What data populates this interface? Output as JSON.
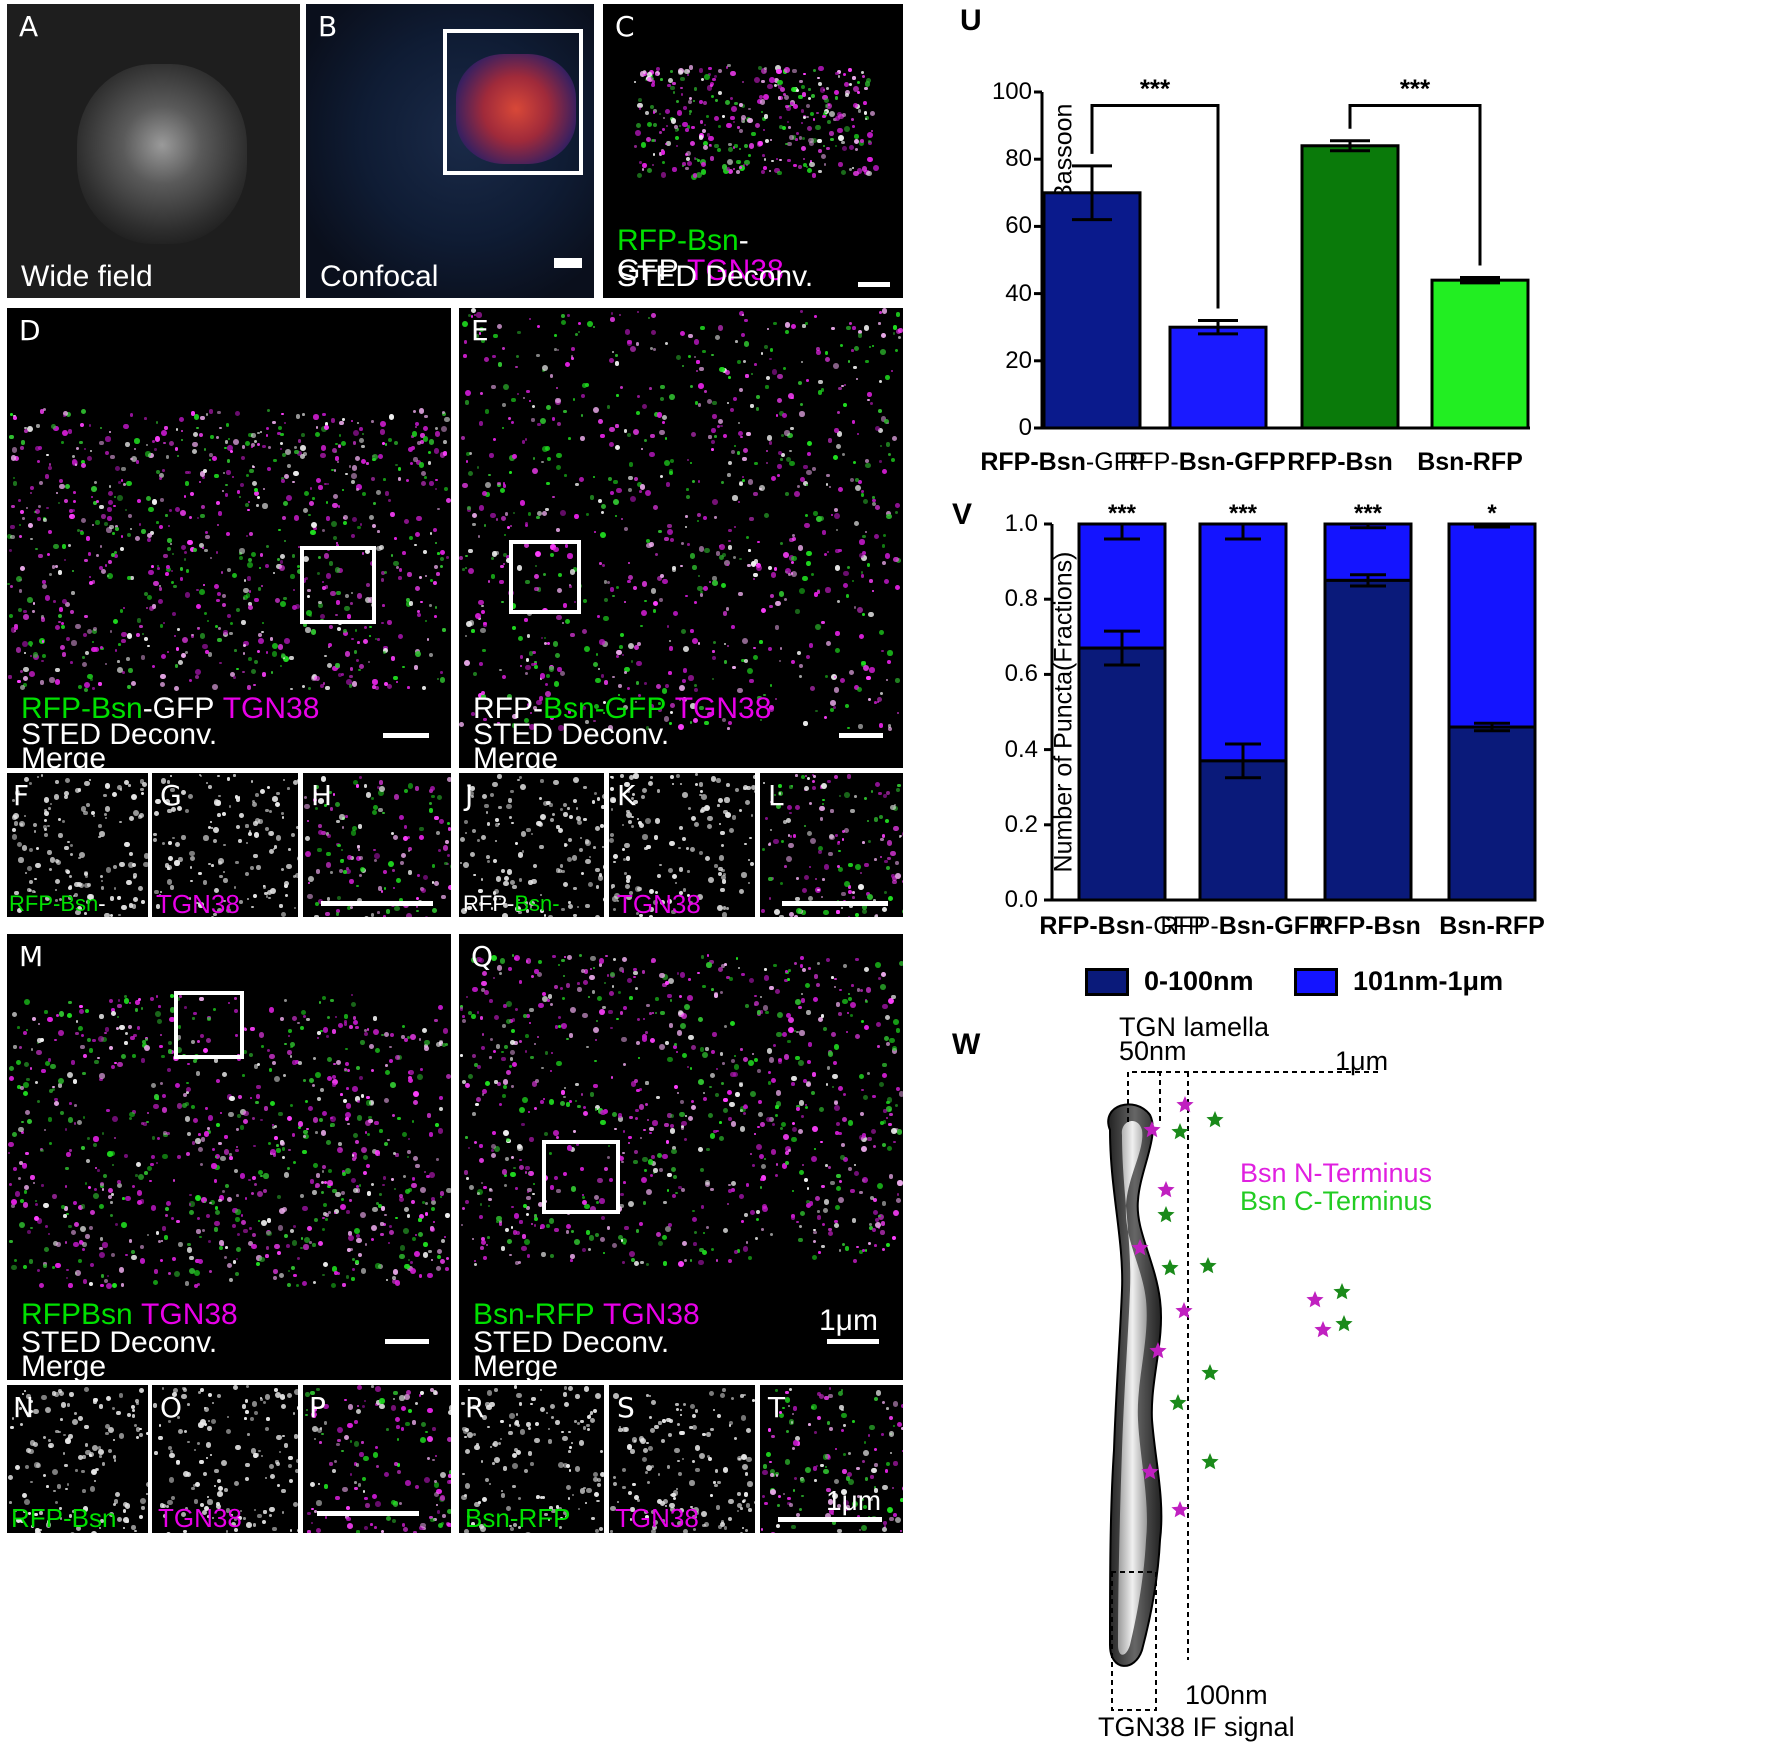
{
  "panels": {
    "A": {
      "label": "A",
      "caption": "Wide field"
    },
    "B": {
      "label": "B",
      "caption": "Confocal"
    },
    "C": {
      "label": "C",
      "cap_g1": "RFP-",
      "cap_g2": "Bsn",
      "cap_w1": "-GFP",
      "cap_m1": "TGN38",
      "cap_line2": "STED Deconv."
    },
    "D": {
      "label": "D",
      "cap_g1": "RFP-Bsn",
      "cap_w1": "-GFP",
      "cap_m1": "TGN38",
      "cap_line2": "STED Deconv.",
      "cap_line3": "Merge"
    },
    "E": {
      "label": "E",
      "cap_w1": "RFP-",
      "cap_g1": "Bsn-GFP",
      "cap_m1": "TGN38",
      "cap_line2": "STED Deconv.",
      "cap_line3": "Merge"
    },
    "F": {
      "label": "F",
      "cap_g1": "RFP-Bsn",
      "cap_w1": "-GFP"
    },
    "G": {
      "label": "G",
      "cap_m1": "TGN38"
    },
    "H": {
      "label": "H"
    },
    "J": {
      "label": "J",
      "cap_w1": "RFP-",
      "cap_g1": "Bsn-GFP"
    },
    "K": {
      "label": "K",
      "cap_m1": "TGN38"
    },
    "L": {
      "label": "L"
    },
    "M": {
      "label": "M",
      "cap_g1": "RFPBsn",
      "cap_m1": "TGN38",
      "cap_line2": "STED Deconv.",
      "cap_line3": "Merge"
    },
    "Q": {
      "label": "Q",
      "cap_g1": "Bsn-RFP",
      "cap_m1": "TGN38",
      "cap_line2": "STED Deconv.",
      "cap_line3": "Merge",
      "scale": "1μm"
    },
    "N": {
      "label": "N",
      "cap_g1": "RFP-Bsn"
    },
    "O": {
      "label": "O",
      "cap_m1": "TGN38"
    },
    "P": {
      "label": "P"
    },
    "R": {
      "label": "R",
      "cap_g1": "Bsn-RFP"
    },
    "S": {
      "label": "S",
      "cap_m1": "TGN38"
    },
    "T": {
      "label": "T",
      "scale": "1μm"
    }
  },
  "chart_data": [
    {
      "panel": "U",
      "type": "bar",
      "ylabel": "% Colocalisation of Bassoon",
      "ylim": [
        0,
        100
      ],
      "yticks": [
        "0",
        "20",
        "40",
        "60",
        "80",
        "100"
      ],
      "categories": [
        {
          "bold1": "RFP-Bsn",
          "plain1": "-GFP",
          "plain0": "",
          "bold0": ""
        },
        {
          "plain0": "RFP-",
          "bold0": "Bsn-GFP",
          "bold1": "",
          "plain1": ""
        },
        {
          "bold1": "RFP-Bsn",
          "plain1": "",
          "plain0": "",
          "bold0": ""
        },
        {
          "bold1": "Bsn-RFP",
          "plain1": "",
          "plain0": "",
          "bold0": ""
        }
      ],
      "values": [
        70,
        30,
        84,
        44
      ],
      "errors": [
        8,
        2,
        1.5,
        0.8
      ],
      "colors": [
        "#0a1a8c",
        "#1a1aff",
        "#0a7a0a",
        "#22ee22"
      ],
      "significance": [
        {
          "pair": [
            0,
            1
          ],
          "label": "***"
        },
        {
          "pair": [
            2,
            3
          ],
          "label": "***"
        }
      ]
    },
    {
      "panel": "V",
      "type": "bar",
      "stacked": true,
      "ylabel": "Number of Puncta(Fractions)",
      "ylim": [
        0,
        1.0
      ],
      "yticks": [
        "0.0",
        "0.2",
        "0.4",
        "0.6",
        "0.8",
        "1.0"
      ],
      "series": [
        {
          "name": "0-100nm",
          "color": "#0a1a7a",
          "values": [
            0.67,
            0.37,
            0.85,
            0.46
          ],
          "errors": [
            0.045,
            0.045,
            0.015,
            0.01
          ]
        },
        {
          "name": "101nm-1μm",
          "color": "#1414ff",
          "values": [
            0.33,
            0.63,
            0.15,
            0.54
          ],
          "errors": [
            0.02,
            0.02,
            0.005,
            0.004
          ]
        }
      ],
      "significance": [
        "***",
        "***",
        "***",
        "*"
      ]
    }
  ],
  "panel_U": {
    "label": "U"
  },
  "panel_V": {
    "label": "V"
  },
  "panel_W": {
    "label": "W",
    "t_lamella": "TGN lamella",
    "t_50nm": "50nm",
    "t_1um": "1μm",
    "t_100nm": "100nm",
    "t_if": "TGN38 IF signal",
    "t_nterm": "Bsn N-Terminus",
    "t_cterm": "Bsn C-Terminus",
    "star_magenta": "#c020c0",
    "star_green": "#1a8a1a"
  }
}
